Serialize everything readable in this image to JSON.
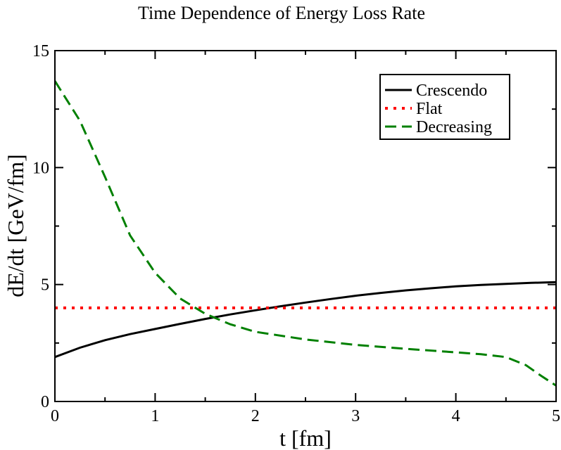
{
  "chart_data": {
    "type": "line",
    "title": "Time Dependence of Energy Loss Rate",
    "xlabel": "t [fm]",
    "ylabel": "dE/dt [GeV/fm]",
    "xlim": [
      0,
      5
    ],
    "ylim": [
      0,
      15
    ],
    "xticks": [
      0,
      1,
      2,
      3,
      4,
      5
    ],
    "yticks": [
      0,
      5,
      10,
      15
    ],
    "xtick_labels": [
      "0",
      "1",
      "2",
      "3",
      "4",
      "5"
    ],
    "ytick_labels": [
      "0",
      "5",
      "10",
      "15"
    ],
    "legend_position": "top-right",
    "series": [
      {
        "name": "Crescendo",
        "color": "#000000",
        "style": "solid",
        "x": [
          0,
          0.25,
          0.5,
          0.75,
          1.0,
          1.25,
          1.5,
          1.75,
          2.0,
          2.25,
          2.5,
          2.75,
          3.0,
          3.25,
          3.5,
          3.75,
          4.0,
          4.25,
          4.5,
          4.75,
          5.0
        ],
        "y": [
          1.9,
          2.3,
          2.62,
          2.88,
          3.1,
          3.32,
          3.53,
          3.72,
          3.9,
          4.07,
          4.23,
          4.38,
          4.52,
          4.64,
          4.75,
          4.84,
          4.92,
          4.98,
          5.03,
          5.07,
          5.1
        ]
      },
      {
        "name": "Flat",
        "color": "#ff0000",
        "style": "dotted",
        "x": [
          0,
          5
        ],
        "y": [
          4.0,
          4.0
        ]
      },
      {
        "name": "Decreasing",
        "color": "#008000",
        "style": "dashed",
        "x": [
          0,
          0.25,
          0.5,
          0.75,
          1.0,
          1.25,
          1.5,
          1.75,
          2.0,
          2.5,
          3.0,
          3.5,
          4.0,
          4.25,
          4.5,
          4.7,
          4.85,
          5.0
        ],
        "y": [
          13.7,
          12.0,
          9.6,
          7.1,
          5.5,
          4.4,
          3.75,
          3.3,
          2.98,
          2.65,
          2.42,
          2.25,
          2.1,
          2.02,
          1.9,
          1.55,
          1.1,
          0.68
        ]
      }
    ]
  }
}
